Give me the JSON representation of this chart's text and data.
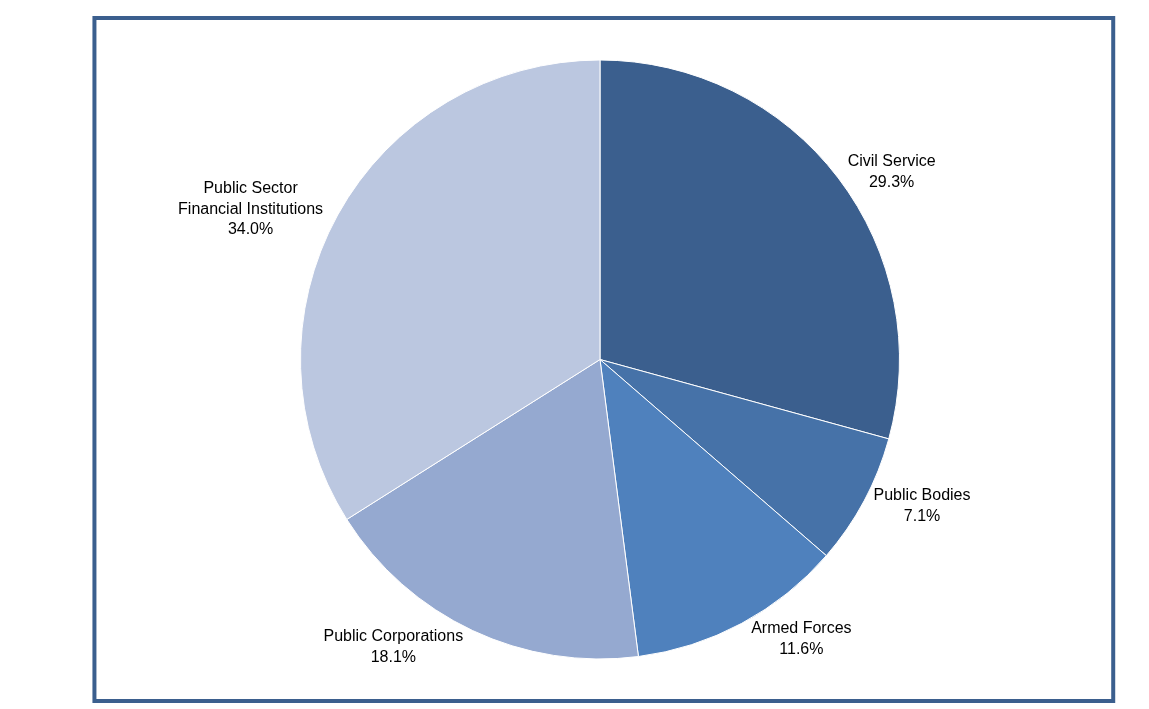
{
  "chart_data": {
    "type": "pie",
    "categories": [
      "Civil Service",
      "Public Bodies",
      "Armed Forces",
      "Public Corporations",
      "Public Sector\nFinancial Institutions"
    ],
    "values": [
      29.3,
      7.1,
      11.6,
      18.1,
      34.0
    ],
    "value_labels": [
      "29.3%",
      "7.1%",
      "11.6%",
      "18.1%",
      "34.0%"
    ],
    "colors": [
      "#3b5f8e",
      "#4672a8",
      "#4f81bd",
      "#95a9d0",
      "#bbc7e0"
    ],
    "legend": false
  }
}
